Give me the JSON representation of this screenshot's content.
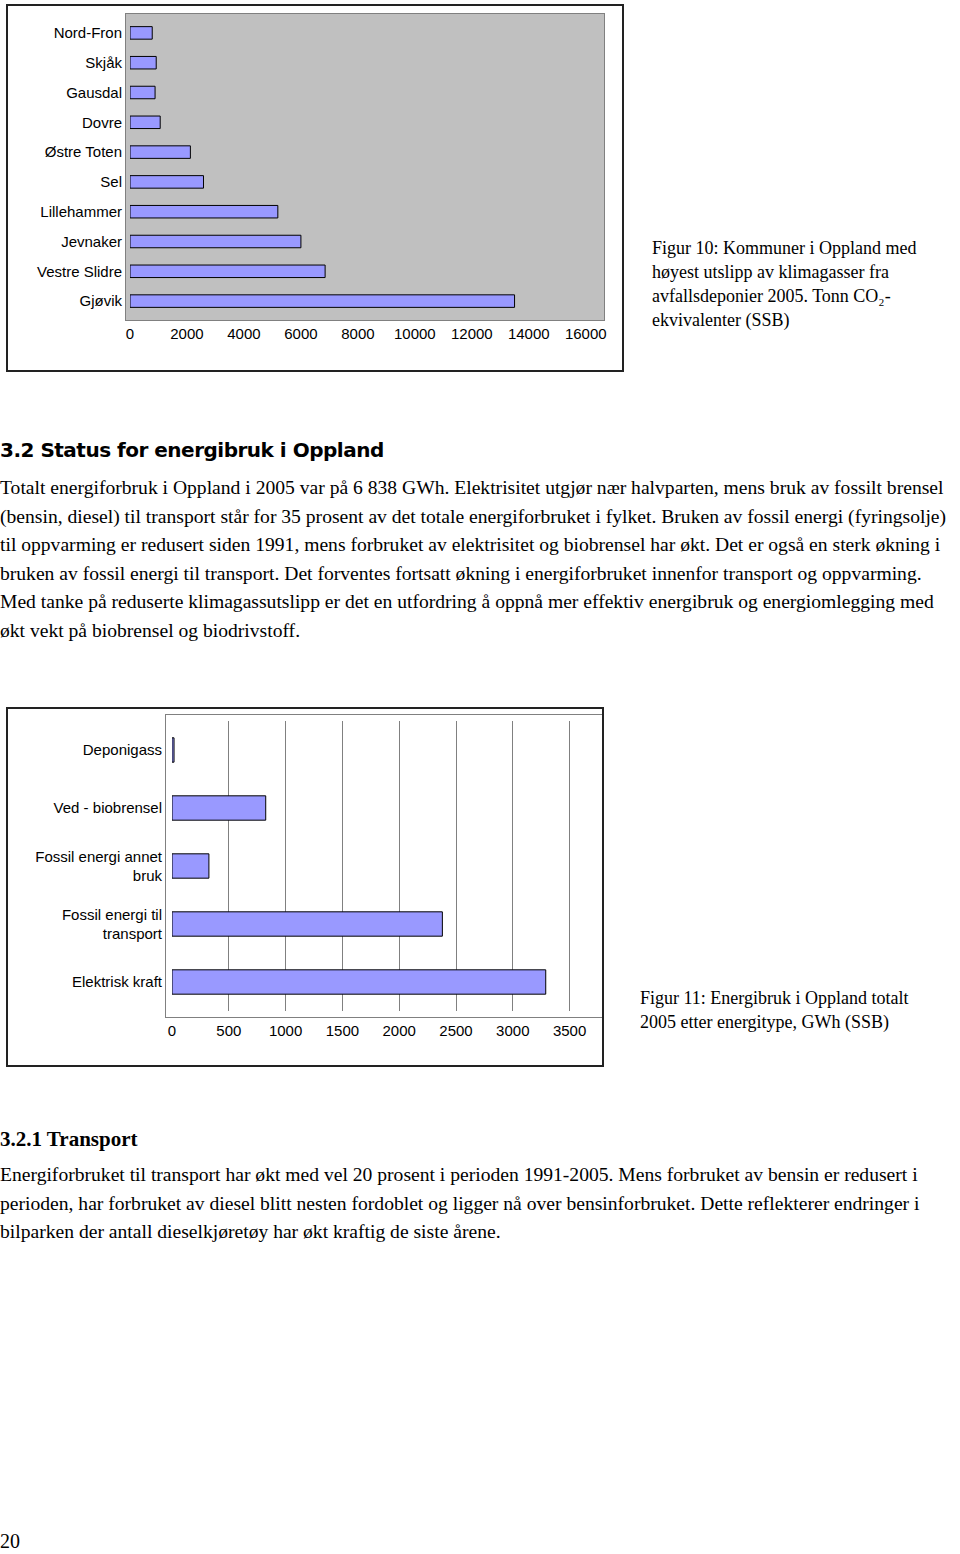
{
  "chart_data": [
    {
      "type": "bar",
      "orientation": "horizontal",
      "title": "Figur 10: Kommuner i Oppland med høyest utslipp av klimagasser fra avfallsdeponier 2005. Tonn CO₂-ekvivalenter (SSB)",
      "categories": [
        "Nord-Fron",
        "Skjåk",
        "Gausdal",
        "Dovre",
        "Østre Toten",
        "Sel",
        "Lillehammer",
        "Jevnaker",
        "Vestre Slidre",
        "Gjøvik"
      ],
      "values": [
        780,
        920,
        880,
        1060,
        2120,
        2580,
        5190,
        6000,
        6850,
        13500
      ],
      "color": "#9999ff",
      "grid": false,
      "xlim": [
        0,
        16500
      ],
      "xticks": [
        0,
        2000,
        4000,
        6000,
        8000,
        10000,
        12000,
        14000,
        16000
      ]
    },
    {
      "type": "bar",
      "orientation": "horizontal",
      "title": "Figur 11: Energibruk i Oppland totalt 2005 etter energitype, GWh (SSB)",
      "categories": [
        "Deponigass",
        "Ved - biobrensel",
        "Fossil energi annet bruk",
        "Fossil energi til transport",
        "Elektrisk kraft"
      ],
      "values": [
        18,
        825,
        325,
        2380,
        3290
      ],
      "color": "#9999ff",
      "grid": true,
      "xlim": [
        0,
        3750
      ],
      "xticks": [
        0,
        500,
        1000,
        1500,
        2000,
        2500,
        3000,
        3500
      ]
    }
  ],
  "document": {
    "heading": "3.2 Status for energibruk i Oppland",
    "paragraph1": "Totalt energiforbruk i Oppland i 2005 var på 6 838 GWh. Elektrisitet utgjør nær halvparten, mens bruk av fossilt brensel (bensin, diesel) til transport står for 35 prosent av det totale energiforbruket i fylket. Bruken av fossil energi (fyringsolje) til oppvarming er redusert siden 1991, mens forbruket av elektrisitet og biobrensel har økt. Det er også en sterk økning i bruken av fossil energi til transport. Det forventes fortsatt økning i energiforbruket innenfor transport og oppvarming. Med tanke på reduserte klimagassutslipp er det en utfordring å oppnå mer effektiv energibruk og energiomlegging med økt vekt på biobrensel og biodrivstoff.",
    "subheading": "3.2.1 Transport",
    "paragraph2": "Energiforbruket til transport har økt med vel 20 prosent i perioden 1991-2005. Mens forbruket av bensin er redusert i perioden, har forbruket av diesel blitt nesten fordoblet og ligger nå over bensinforbruket. Dette reflekterer endringer i bilparken der antall dieselkjøretøy har økt kraftig de siste årene.",
    "page_number": "20"
  }
}
